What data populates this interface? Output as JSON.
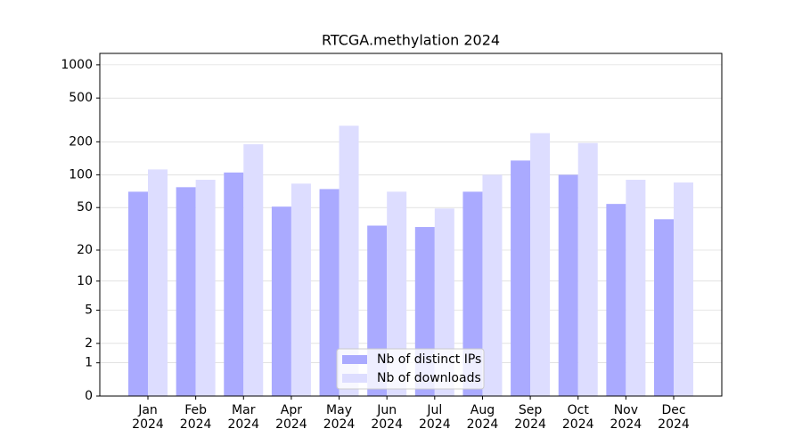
{
  "chart_data": {
    "type": "bar",
    "title": "RTCGA.methylation 2024",
    "yscale": "log1p",
    "categories": [
      "Jan\n2024",
      "Feb\n2024",
      "Mar\n2024",
      "Apr\n2024",
      "May\n2024",
      "Jun\n2024",
      "Jul\n2024",
      "Aug\n2024",
      "Sep\n2024",
      "Oct\n2024",
      "Nov\n2024",
      "Dec\n2024"
    ],
    "series": [
      {
        "name": "Nb of distinct IPs",
        "color": "#aaaaff",
        "values": [
          70,
          77,
          105,
          51,
          74,
          34,
          33,
          70,
          135,
          100,
          54,
          39
        ]
      },
      {
        "name": "Nb of downloads",
        "color": "#ddddff",
        "values": [
          112,
          90,
          190,
          83,
          280,
          70,
          49,
          100,
          240,
          195,
          90,
          85
        ]
      }
    ],
    "ylim": [
      0,
      1270
    ],
    "yticks": [
      0,
      1,
      2,
      5,
      10,
      20,
      50,
      100,
      200,
      500,
      1000
    ],
    "grid": true,
    "legend": "lower center"
  }
}
